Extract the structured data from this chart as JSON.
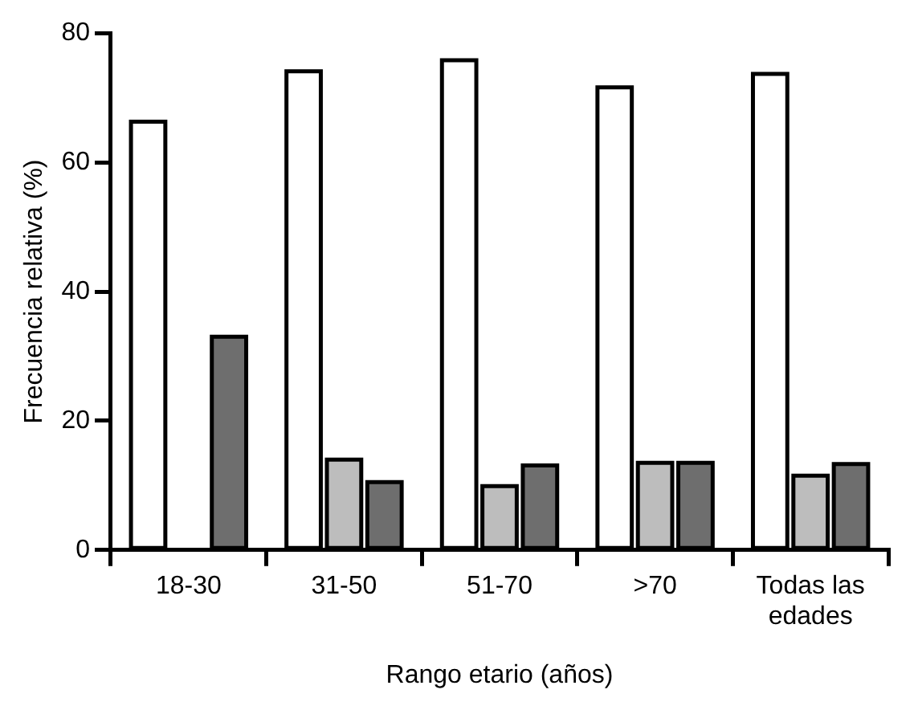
{
  "chart_data": {
    "type": "bar",
    "xlabel": "Rango etario (años)",
    "ylabel": "Frecuencia relativa (%)",
    "categories": [
      "18-30",
      "31-50",
      "51-70",
      ">70",
      "Todas las edades"
    ],
    "series": [
      {
        "color": "#ffffff",
        "values": [
          66.3,
          74.1,
          75.8,
          71.6,
          73.7
        ]
      },
      {
        "color": "#bdbdbd",
        "values": [
          null,
          14,
          9.9,
          13.5,
          11.5
        ]
      },
      {
        "color": "#6e6e6e",
        "values": [
          33,
          10.5,
          13.1,
          13.5,
          13.3
        ]
      }
    ],
    "ylim": [
      0,
      80
    ],
    "yticks": [
      0,
      20,
      40,
      60,
      80
    ],
    "grid": false,
    "legend": false
  }
}
